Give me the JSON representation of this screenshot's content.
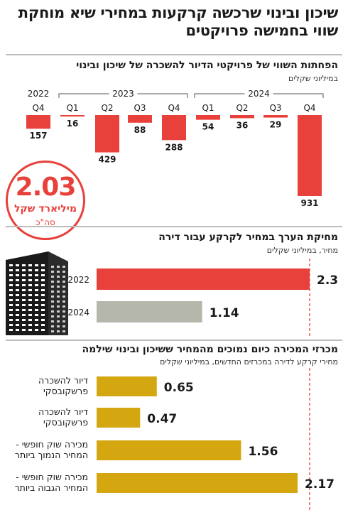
{
  "header": {
    "title": "שיכון ובינוי שרכשה קרקעות במחירי שיא מוחקת שווי בחמישה פרויקטים"
  },
  "colors": {
    "red": "#e8403a",
    "gray": "#b5b7ad",
    "gold": "#d4a710",
    "dash": "#e8403a"
  },
  "icons": {
    "building": "building-icon"
  },
  "total": {
    "value": "2.03",
    "unit": "מיליארד שקל",
    "label": "סה\"כ"
  },
  "chart_data": [
    {
      "type": "bar",
      "title": "הפחתות השווי של פרויקטי הדיור להשכרה של שיכון ובינוי",
      "subtitle": "במיליוני שקלים",
      "years": [
        {
          "label": "2022",
          "quarters": [
            0
          ]
        },
        {
          "label": "2023",
          "quarters": [
            1,
            2,
            3,
            4
          ]
        },
        {
          "label": "2024",
          "quarters": [
            5,
            6,
            7,
            8
          ]
        }
      ],
      "categories": [
        "Q4",
        "Q1",
        "Q2",
        "Q3",
        "Q4",
        "Q1",
        "Q2",
        "Q3",
        "Q4"
      ],
      "values": [
        157,
        16,
        429,
        88,
        288,
        54,
        36,
        29,
        931
      ],
      "value_labels": [
        "157",
        "16",
        "429",
        "88",
        "288",
        "54",
        "36",
        "29",
        "931"
      ],
      "direction": "down"
    },
    {
      "type": "bar",
      "orientation": "horizontal",
      "title": "מחיקת הערך במחיר לקרקע עבור דירה",
      "subtitle": "מחיר, במיליוני שקלים",
      "categories": [
        "2022",
        "2024"
      ],
      "values": [
        2.3,
        1.14
      ],
      "value_labels": [
        "2.3",
        "1.14"
      ],
      "xlim": [
        0,
        2.3
      ]
    },
    {
      "type": "bar",
      "orientation": "horizontal",
      "title": "מכרזי המכירה כיום נמוכים מהמחיר ששיכון ובינוי שילמה",
      "subtitle": "מחירי קרקע לדירה במכרזים החדשים, במיליוני שקלים",
      "categories": [
        [
          "דיור להשכרה",
          "פרשקובסקי"
        ],
        [
          "דיור להשכרה",
          "פרשקובסקי"
        ],
        [
          "מכירה שוק חופשי -",
          "המחיר הנמוך ביותר"
        ],
        [
          "מכירה שוק חופשי -",
          "המחיר הגבוה ביותר"
        ]
      ],
      "values": [
        0.65,
        0.47,
        1.56,
        2.17
      ],
      "value_labels": [
        "0.65",
        "0.47",
        "1.56",
        "2.17"
      ],
      "reference_line": 2.3
    }
  ]
}
